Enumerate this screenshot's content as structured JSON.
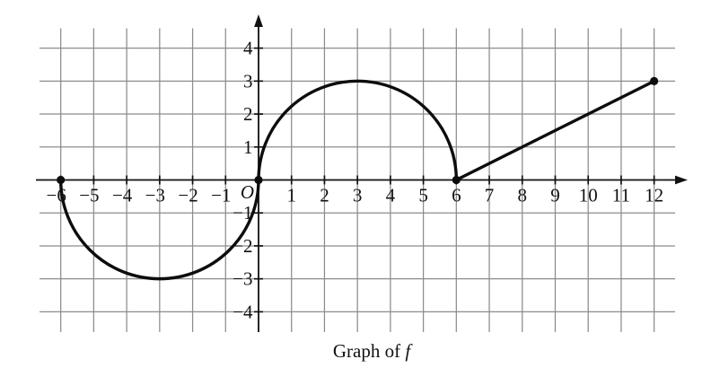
{
  "chart_data": {
    "type": "line",
    "title": "Graph of f",
    "caption": {
      "prefix": "Graph of ",
      "function_name": "f"
    },
    "origin_label": "O",
    "xlim": [
      -6,
      12
    ],
    "ylim": [
      -4,
      4
    ],
    "grid": true,
    "legend": false,
    "x_tick_labels": [
      -6,
      -5,
      -4,
      -3,
      -2,
      -1,
      1,
      2,
      3,
      4,
      5,
      6,
      7,
      8,
      9,
      10,
      11,
      12
    ],
    "y_tick_labels": [
      -4,
      -3,
      -2,
      -1,
      1,
      2,
      3,
      4
    ],
    "segments": [
      {
        "type": "arc",
        "shape": "semicircle",
        "center": [
          -3,
          0
        ],
        "radius": 3,
        "side": "below",
        "from": [
          -6,
          0
        ],
        "to": [
          0,
          0
        ]
      },
      {
        "type": "arc",
        "shape": "semicircle",
        "center": [
          3,
          0
        ],
        "radius": 3,
        "side": "above",
        "from": [
          0,
          0
        ],
        "to": [
          6,
          0
        ]
      },
      {
        "type": "segment",
        "from": [
          6,
          0
        ],
        "to": [
          12,
          3
        ]
      }
    ],
    "marked_points": [
      [
        -6,
        0
      ],
      [
        0,
        0
      ],
      [
        6,
        0
      ],
      [
        12,
        3
      ]
    ],
    "colors": {
      "curve": "#0d0d0d",
      "grid": "#8c8c8c",
      "axis": "#111111",
      "label": "#111111",
      "background": "#ffffff"
    }
  }
}
